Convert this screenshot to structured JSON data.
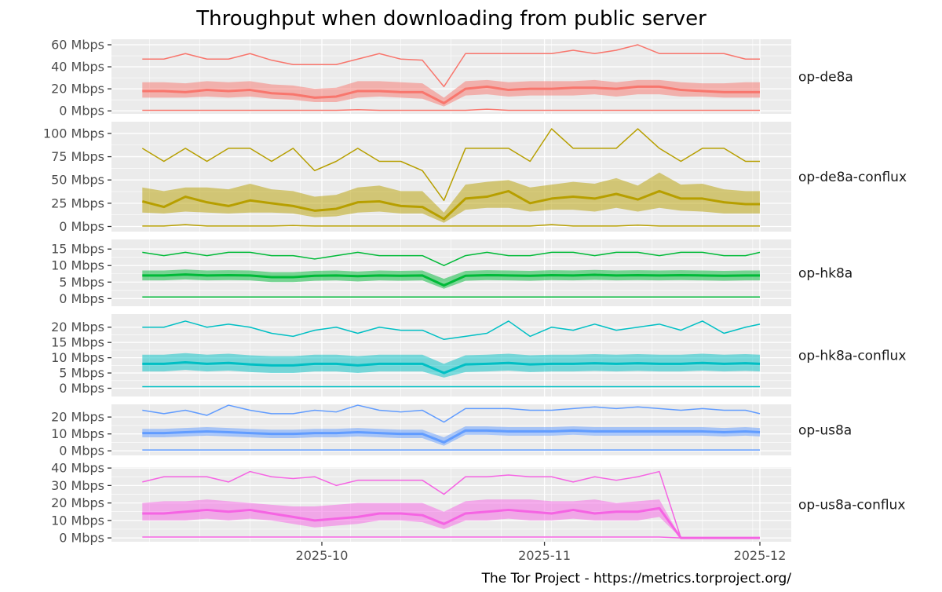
{
  "chart_data": {
    "type": "line",
    "title": "Throughput when downloading from public server",
    "caption": "The Tor Project - https://metrics.torproject.org/",
    "xlabel": "",
    "ylabel": "",
    "x_tick_labels": [
      "2025-10",
      "2025-11",
      "2025-12"
    ],
    "x_tick_dates": [
      "2025-10-01",
      "2025-11-01",
      "2025-12-01"
    ],
    "xlim": [
      "2025-09-03",
      "2025-12-05"
    ],
    "grid": true,
    "series_description": [
      "median (thick line)",
      "interquartile range (ribbon)",
      "maximum (thin line)",
      "minimum (thin line)"
    ],
    "x": [
      "2025-09-06",
      "2025-09-09",
      "2025-09-12",
      "2025-09-15",
      "2025-09-18",
      "2025-09-21",
      "2025-09-24",
      "2025-09-27",
      "2025-09-30",
      "2025-10-03",
      "2025-10-06",
      "2025-10-09",
      "2025-10-12",
      "2025-10-15",
      "2025-10-18",
      "2025-10-21",
      "2025-10-24",
      "2025-10-27",
      "2025-10-30",
      "2025-11-02",
      "2025-11-05",
      "2025-11-08",
      "2025-11-11",
      "2025-11-14",
      "2025-11-17",
      "2025-11-20",
      "2025-11-23",
      "2025-11-26",
      "2025-11-29",
      "2025-12-01"
    ],
    "panels": [
      {
        "name": "op-de8a",
        "color": "#F8766D",
        "ylim": [
          -2.7,
          65
        ],
        "ticks": [
          0,
          20,
          40,
          60
        ],
        "unit": "Mbps",
        "max": [
          47,
          47,
          52,
          47,
          47,
          52,
          46,
          42,
          42,
          42,
          47,
          52,
          47,
          46,
          22,
          52,
          52,
          52,
          52,
          52,
          55,
          52,
          55,
          60,
          52,
          52,
          52,
          52,
          47,
          47
        ],
        "q3": [
          26,
          26,
          25,
          27,
          26,
          27,
          24,
          23,
          20,
          21,
          27,
          27,
          26,
          25,
          12,
          27,
          28,
          26,
          27,
          27,
          27,
          28,
          26,
          28,
          28,
          26,
          25,
          25,
          26,
          26
        ],
        "median": [
          18,
          18,
          17,
          19,
          18,
          19,
          16,
          15,
          12,
          13,
          18,
          18,
          17,
          17,
          7,
          20,
          22,
          19,
          20,
          20,
          21,
          21,
          20,
          22,
          22,
          19,
          18,
          17,
          17,
          17
        ],
        "q1": [
          12,
          12,
          12,
          13,
          12,
          13,
          11,
          10,
          8,
          8,
          12,
          13,
          12,
          11,
          4,
          14,
          15,
          13,
          14,
          14,
          14,
          15,
          13,
          15,
          15,
          13,
          13,
          12,
          12,
          12
        ],
        "min": [
          0.5,
          0.5,
          0.5,
          0.5,
          0.5,
          0.5,
          0.5,
          0.5,
          0.5,
          0.5,
          1,
          0.5,
          0.5,
          0.5,
          0.5,
          0.5,
          1.5,
          0.5,
          0.5,
          0.5,
          0.5,
          0.5,
          0.5,
          0.5,
          0.5,
          0.5,
          0.5,
          0.5,
          0.5,
          0.5
        ]
      },
      {
        "name": "op-de8a-conflux",
        "color": "#B79F00",
        "ylim": [
          -5.5,
          112.6
        ],
        "ticks": [
          0,
          25,
          50,
          75,
          100
        ],
        "unit": "Mbps",
        "max": [
          84,
          70,
          84,
          70,
          84,
          84,
          70,
          84,
          60,
          70,
          84,
          70,
          70,
          60,
          28,
          84,
          84,
          84,
          70,
          105,
          84,
          84,
          84,
          105,
          84,
          70,
          84,
          84,
          70,
          70
        ],
        "q3": [
          42,
          38,
          42,
          42,
          40,
          46,
          40,
          38,
          32,
          34,
          42,
          44,
          38,
          38,
          15,
          45,
          48,
          50,
          42,
          45,
          48,
          46,
          52,
          44,
          58,
          45,
          46,
          40,
          38,
          38
        ],
        "median": [
          27,
          21,
          32,
          26,
          22,
          28,
          25,
          22,
          17,
          19,
          26,
          27,
          22,
          21,
          8,
          30,
          32,
          38,
          25,
          30,
          32,
          30,
          35,
          29,
          38,
          30,
          30,
          26,
          24,
          24
        ],
        "q1": [
          15,
          14,
          16,
          15,
          14,
          15,
          15,
          14,
          10,
          11,
          15,
          16,
          14,
          14,
          4,
          18,
          20,
          20,
          16,
          18,
          18,
          16,
          20,
          16,
          20,
          17,
          16,
          14,
          14,
          14
        ],
        "min": [
          0.5,
          0.5,
          2,
          0.5,
          0.5,
          0.5,
          0.5,
          1,
          0.5,
          0.5,
          0.5,
          0.5,
          0.5,
          0.5,
          0.5,
          0.5,
          0.5,
          0.5,
          0.5,
          2,
          0.5,
          0.5,
          0.5,
          1.5,
          0.5,
          0.5,
          0.5,
          0.5,
          0.5,
          0.5
        ]
      },
      {
        "name": "op-hk8a",
        "color": "#00BA38",
        "ylim": [
          -2.3,
          17.9
        ],
        "ticks": [
          0,
          5,
          10,
          15
        ],
        "unit": "Mbps",
        "max": [
          14,
          13,
          14,
          13,
          14,
          14,
          13,
          13,
          12,
          13,
          14,
          13,
          13,
          13,
          10,
          13,
          14,
          13,
          13,
          14,
          14,
          13,
          14,
          14,
          13,
          14,
          14,
          13,
          13,
          14
        ],
        "q3": [
          8.5,
          8.5,
          8.8,
          8.5,
          8.6,
          8.5,
          8,
          8,
          8.4,
          8.5,
          8.2,
          8.5,
          8.4,
          8.5,
          6,
          8.4,
          8.6,
          8.5,
          8.4,
          8.6,
          8.5,
          8.7,
          8.5,
          8.6,
          8.5,
          8.6,
          8.5,
          8.4,
          8.5,
          8.5
        ],
        "median": [
          7,
          7,
          7.3,
          7,
          7.1,
          7,
          6.5,
          6.5,
          6.9,
          7,
          6.8,
          7,
          6.9,
          7,
          4,
          6.9,
          7.1,
          7,
          6.9,
          7.1,
          7,
          7.2,
          7,
          7.1,
          7,
          7.1,
          7,
          6.9,
          7,
          7
        ],
        "q1": [
          5.5,
          5.5,
          5.8,
          5.5,
          5.6,
          5.5,
          5,
          5,
          5.4,
          5.5,
          5.2,
          5.5,
          5.4,
          5.5,
          3,
          5.4,
          5.6,
          5.5,
          5.4,
          5.6,
          5.5,
          5.7,
          5.5,
          5.6,
          5.5,
          5.6,
          5.5,
          5.4,
          5.5,
          5.5
        ],
        "min": [
          0.5,
          0.5,
          0.5,
          0.5,
          0.5,
          0.5,
          0.5,
          0.5,
          0.5,
          0.5,
          0.5,
          0.5,
          0.5,
          0.5,
          0.5,
          0.5,
          0.5,
          0.5,
          0.5,
          0.5,
          0.5,
          0.5,
          0.5,
          0.5,
          0.5,
          0.5,
          0.5,
          0.5,
          0.5,
          0.5
        ]
      },
      {
        "name": "op-hk8a-conflux",
        "color": "#00BFC4",
        "ylim": [
          -2.7,
          24.3
        ],
        "ticks": [
          0,
          5,
          10,
          15,
          20
        ],
        "unit": "Mbps",
        "max": [
          20,
          20,
          22,
          20,
          21,
          20,
          18,
          17,
          19,
          20,
          18,
          20,
          19,
          19,
          16,
          17,
          18,
          22,
          17,
          20,
          19,
          21,
          19,
          20,
          21,
          19,
          22,
          18,
          20,
          21
        ],
        "q3": [
          11,
          11,
          11.5,
          11,
          11.3,
          10.8,
          10.5,
          10.5,
          11,
          11,
          10.5,
          11,
          11,
          11,
          8,
          10.8,
          11,
          11.3,
          10.8,
          11,
          11,
          11.2,
          11,
          11.2,
          11,
          11,
          11.3,
          11,
          11.2,
          11
        ],
        "median": [
          8,
          8,
          8.5,
          8,
          8.3,
          7.8,
          7.5,
          7.5,
          8,
          8,
          7.5,
          8,
          8,
          8,
          5,
          7.8,
          8,
          8.3,
          7.8,
          8,
          8,
          8.2,
          8,
          8.2,
          8,
          8,
          8.3,
          8,
          8.2,
          8
        ],
        "q1": [
          5.5,
          5.5,
          6,
          5.5,
          5.8,
          5.3,
          5,
          5,
          5.5,
          5.5,
          5,
          5.5,
          5.5,
          5.5,
          3.5,
          5.3,
          5.5,
          5.8,
          5.3,
          5.5,
          5.5,
          5.7,
          5.5,
          5.7,
          5.5,
          5.5,
          5.8,
          5.5,
          5.7,
          5.5
        ],
        "min": [
          0.5,
          0.5,
          0.5,
          0.5,
          0.5,
          0.5,
          0.5,
          0.5,
          0.5,
          0.5,
          0.5,
          0.5,
          0.5,
          0.5,
          0.5,
          0.5,
          0.5,
          0.5,
          0.5,
          0.5,
          0.5,
          0.5,
          0.5,
          0.5,
          0.5,
          0.5,
          0.5,
          0.5,
          0.5,
          0.5
        ]
      },
      {
        "name": "op-us8a",
        "color": "#619CFF",
        "ylim": [
          -2.7,
          27.5
        ],
        "ticks": [
          0,
          10,
          20
        ],
        "unit": "Mbps",
        "max": [
          24,
          22,
          24,
          21,
          27,
          24,
          22,
          22,
          24,
          23,
          27,
          24,
          23,
          24,
          17,
          25,
          25,
          25,
          24,
          24,
          25,
          26,
          25,
          26,
          25,
          24,
          25,
          24,
          24,
          22
        ],
        "q3": [
          13,
          13,
          13.5,
          14,
          13.5,
          13,
          12.5,
          12.5,
          13,
          13,
          13.5,
          13,
          12.5,
          12.5,
          8,
          14.5,
          14.5,
          14,
          14,
          14,
          14.5,
          14,
          14,
          14,
          14,
          14,
          14,
          13.5,
          14,
          13.5
        ],
        "median": [
          10.5,
          10.5,
          11,
          11.5,
          11,
          10.5,
          10,
          10,
          10.5,
          10.5,
          11,
          10.5,
          10,
          10,
          5,
          12,
          12,
          11.5,
          11.5,
          11.5,
          12,
          11.5,
          11.5,
          11.5,
          11.5,
          11.5,
          11.5,
          11,
          11.5,
          11
        ],
        "q1": [
          8,
          8,
          8.5,
          9,
          8.5,
          8,
          7.5,
          7.5,
          8,
          8,
          8.5,
          8,
          7.5,
          7.5,
          3,
          9.5,
          9.5,
          9,
          9,
          9,
          9.5,
          9,
          9,
          9,
          9,
          9,
          9,
          8.5,
          9,
          8.5
        ],
        "min": [
          0.5,
          0.5,
          0.5,
          0.5,
          0.5,
          0.5,
          0.5,
          0.5,
          0.5,
          0.5,
          0.5,
          0.5,
          0.5,
          0.5,
          0.5,
          0.5,
          0.5,
          0.5,
          0.5,
          0.5,
          0.5,
          0.5,
          0.5,
          0.5,
          0.5,
          0.5,
          0.5,
          0.5,
          0.5,
          0.5
        ]
      },
      {
        "name": "op-us8a-conflux",
        "color": "#F564E3",
        "ylim": [
          -2.2,
          40.5
        ],
        "ticks": [
          0,
          10,
          20,
          30,
          40
        ],
        "unit": "Mbps",
        "max": [
          32,
          35,
          35,
          35,
          32,
          38,
          35,
          34,
          35,
          30,
          33,
          33,
          33,
          33,
          25,
          35,
          35,
          36,
          35,
          35,
          32,
          35,
          33,
          35,
          38,
          0,
          0,
          0,
          0,
          0
        ],
        "q3": [
          20,
          21,
          21,
          22,
          21,
          20,
          19,
          18,
          18,
          19,
          20,
          20,
          20,
          20,
          15,
          21,
          22,
          22,
          22,
          21,
          21,
          22,
          20,
          21,
          22,
          0,
          0,
          0,
          0,
          0
        ],
        "median": [
          14,
          14,
          15,
          16,
          15,
          16,
          14,
          12,
          10,
          11,
          12,
          14,
          14,
          13,
          8,
          14,
          15,
          16,
          15,
          14,
          16,
          14,
          15,
          15,
          17,
          0,
          0,
          0,
          0,
          0
        ],
        "q1": [
          10,
          10,
          10,
          11,
          10,
          11,
          10,
          8,
          6,
          7,
          8,
          10,
          10,
          9,
          5,
          10,
          10,
          11,
          10,
          10,
          11,
          10,
          10,
          10,
          12,
          0,
          0,
          0,
          0,
          0
        ],
        "min": [
          0.5,
          0.5,
          0.5,
          0.5,
          0.5,
          0.5,
          0.5,
          0.5,
          0.5,
          0.5,
          0.5,
          0.5,
          0.5,
          0.5,
          0.5,
          0.5,
          0.5,
          0.5,
          0.5,
          0.5,
          0.5,
          0.5,
          0.5,
          0.5,
          0.5,
          0,
          0,
          0,
          0,
          0
        ]
      }
    ]
  }
}
